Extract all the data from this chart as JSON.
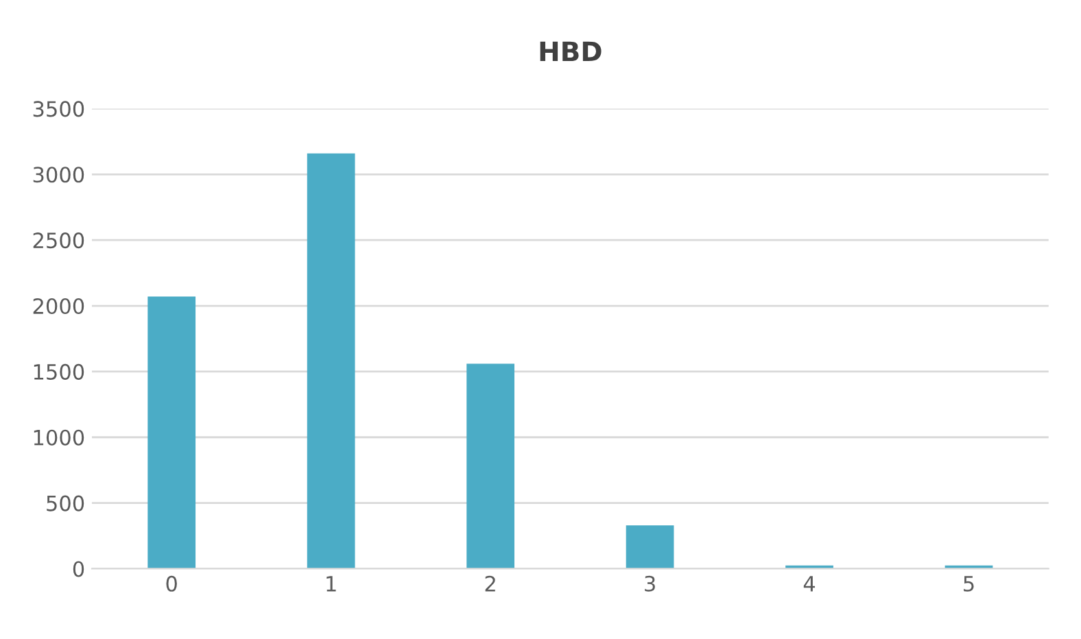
{
  "chart_data": {
    "type": "bar",
    "title": "HBD",
    "categories": [
      "0",
      "1",
      "2",
      "3",
      "4",
      "5"
    ],
    "values": [
      2070,
      3160,
      1560,
      330,
      25,
      25
    ],
    "color": "#4bacc6",
    "ylim": [
      0,
      3500
    ],
    "yticks": [
      0,
      500,
      1000,
      1500,
      2000,
      2500,
      3000,
      3500
    ],
    "grid": "y"
  }
}
